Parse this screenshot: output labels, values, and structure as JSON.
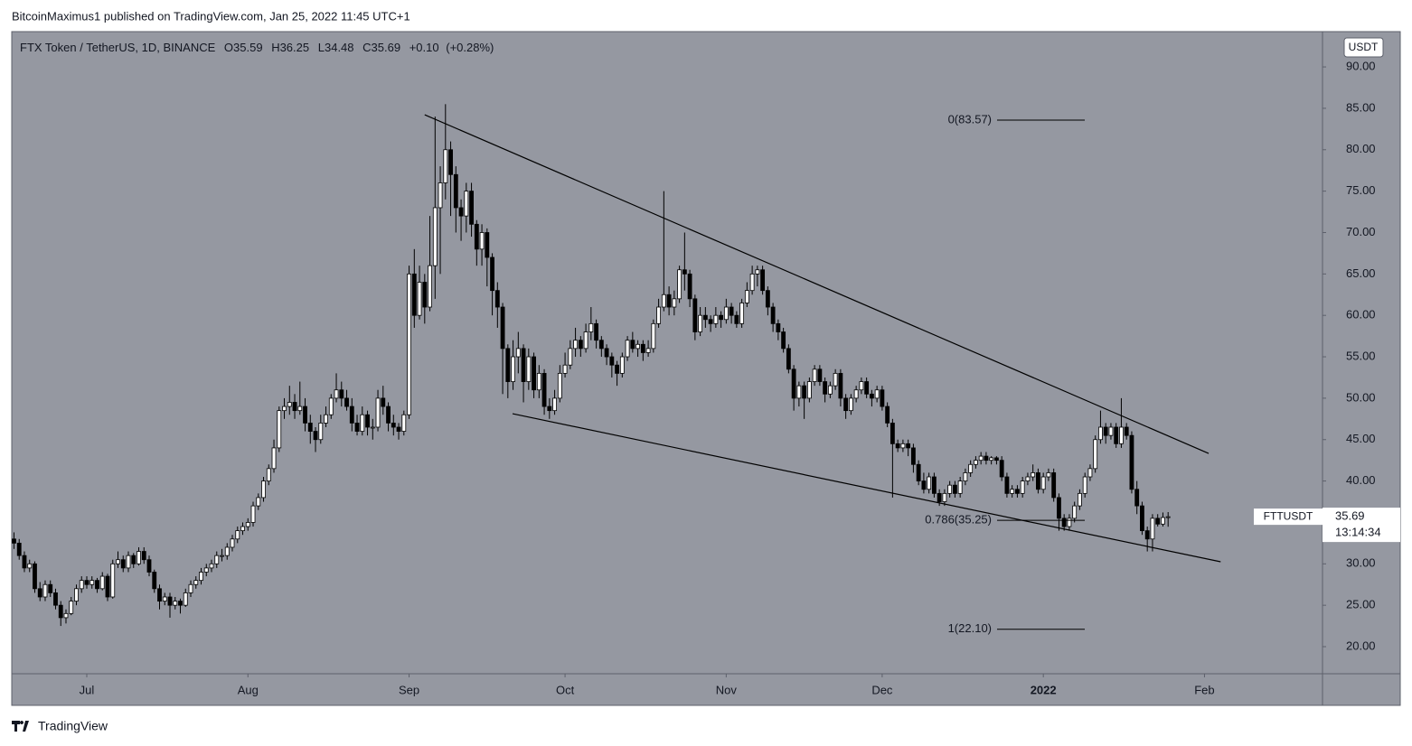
{
  "header": {
    "byline": "BitcoinMaximus1 published on TradingView.com, Jan 25, 2022 11:45 UTC+1"
  },
  "footer": {
    "brand": "TradingView"
  },
  "chart_data": {
    "type": "candlestick",
    "title": "FTX Token / TetherUS, 1D, BINANCE",
    "ohlc_letters": [
      "O",
      "H",
      "L",
      "C"
    ],
    "change": "+0.10",
    "change_pct": "(+0.28%)",
    "symbol": "FTTUSDT",
    "currency": "USDT",
    "countdown": "13:14:34",
    "xlim": [
      -0.43,
      251.7
    ],
    "xticks": [
      {
        "value": 14,
        "label": "Jul"
      },
      {
        "value": 45,
        "label": "Aug"
      },
      {
        "value": 76,
        "label": "Sep"
      },
      {
        "value": 106,
        "label": "Oct"
      },
      {
        "value": 137,
        "label": "Nov"
      },
      {
        "value": 167,
        "label": "Dec"
      },
      {
        "value": 198,
        "label": "2022"
      },
      {
        "value": 229,
        "label": "Feb"
      }
    ],
    "ylim": [
      16.73,
      94.26
    ],
    "yticks": [
      {
        "value": 20,
        "label": "20.00"
      },
      {
        "value": 25,
        "label": "25.00"
      },
      {
        "value": 30,
        "label": "30.00"
      },
      {
        "value": 35,
        "label": "35.00"
      },
      {
        "value": 40,
        "label": "40.00"
      },
      {
        "value": 45,
        "label": "45.00"
      },
      {
        "value": 50,
        "label": "50.00"
      },
      {
        "value": 55,
        "label": "55.00"
      },
      {
        "value": 60,
        "label": "60.00"
      },
      {
        "value": 65,
        "label": "65.00"
      },
      {
        "value": 70,
        "label": "70.00"
      },
      {
        "value": 75,
        "label": "75.00"
      },
      {
        "value": 80,
        "label": "80.00"
      },
      {
        "value": 85,
        "label": "85.00"
      },
      {
        "value": 90,
        "label": "90.00"
      }
    ],
    "up_color": "#ffffff",
    "down_color": "#000000",
    "trendlines": [
      {
        "x": [
          79.0,
          229.8
        ],
        "y": [
          84.22,
          43.33
        ]
      },
      {
        "x": [
          95.9,
          232.1
        ],
        "y": [
          48.13,
          30.25
        ]
      }
    ],
    "fib_levels": [
      {
        "value": 83.57,
        "label": "0(83.57)"
      },
      {
        "value": 35.25,
        "label": "0.786(35.25)"
      },
      {
        "value": 22.1,
        "label": "1(22.10)"
      }
    ],
    "ohlc": [
      [
        33,
        33.8,
        31.8,
        32.5
      ],
      [
        32.5,
        33,
        30.5,
        31
      ],
      [
        31,
        31.5,
        29,
        29.5
      ],
      [
        29.5,
        30.5,
        29,
        30
      ],
      [
        30,
        30.3,
        26.5,
        27
      ],
      [
        27,
        27.8,
        25.5,
        26
      ],
      [
        26,
        28,
        25.5,
        27.5
      ],
      [
        27.5,
        28,
        26,
        26.5
      ],
      [
        26.5,
        27,
        24.5,
        25
      ],
      [
        25,
        25.5,
        22.5,
        23.5
      ],
      [
        23.5,
        24.5,
        22.8,
        24
      ],
      [
        24,
        26,
        23.8,
        25.5
      ],
      [
        25.5,
        27.5,
        25,
        27
      ],
      [
        27,
        28.5,
        26.5,
        28
      ],
      [
        28,
        28.5,
        27,
        27.5
      ],
      [
        27.5,
        28.5,
        27,
        28
      ],
      [
        28,
        28.3,
        26.5,
        27
      ],
      [
        27,
        29,
        26.8,
        28.5
      ],
      [
        28.5,
        28.8,
        25.5,
        26
      ],
      [
        26,
        30.5,
        25.8,
        30
      ],
      [
        30,
        31.5,
        29.5,
        30.5
      ],
      [
        30.5,
        31,
        29,
        29.5
      ],
      [
        29.5,
        31.5,
        29,
        31
      ],
      [
        31,
        31.3,
        29.5,
        30
      ],
      [
        30,
        32,
        29.8,
        31.5
      ],
      [
        31.5,
        32,
        30,
        30.5
      ],
      [
        30.5,
        31,
        28.5,
        29
      ],
      [
        29,
        29.3,
        26.5,
        27
      ],
      [
        27,
        27.5,
        24.5,
        25.5
      ],
      [
        25.5,
        26.5,
        25,
        26
      ],
      [
        26,
        26.5,
        23.5,
        25
      ],
      [
        25,
        26,
        24.5,
        25.5
      ],
      [
        25.5,
        25.8,
        24,
        25
      ],
      [
        25,
        27,
        24.8,
        26.5
      ],
      [
        26.5,
        28,
        26,
        27.5
      ],
      [
        27.5,
        28.5,
        27,
        28
      ],
      [
        28,
        29.5,
        27.5,
        29
      ],
      [
        29,
        30,
        28.5,
        29.5
      ],
      [
        29.5,
        30.5,
        29,
        30
      ],
      [
        30,
        31.5,
        29.5,
        31
      ],
      [
        31,
        31.8,
        30.3,
        31
      ],
      [
        31,
        32.5,
        30.5,
        32
      ],
      [
        32,
        33.5,
        31.5,
        33
      ],
      [
        33,
        34.5,
        32.5,
        34
      ],
      [
        34,
        35,
        33.5,
        34.5
      ],
      [
        34.5,
        35.5,
        34,
        35
      ],
      [
        35,
        37.5,
        34.5,
        37
      ],
      [
        37,
        38.5,
        36.5,
        38
      ],
      [
        38,
        40.5,
        37.5,
        40
      ],
      [
        40,
        42,
        39.5,
        41.5
      ],
      [
        41.5,
        45,
        41,
        44
      ],
      [
        44,
        49,
        43.5,
        48.5
      ],
      [
        48.5,
        50,
        47.5,
        49
      ],
      [
        49,
        51.5,
        48,
        49.5
      ],
      [
        49.5,
        50.5,
        47.5,
        48.5
      ],
      [
        48.5,
        52,
        48,
        49
      ],
      [
        49,
        50,
        46,
        47
      ],
      [
        47,
        48,
        44.5,
        46
      ],
      [
        46,
        46.5,
        43.5,
        45
      ],
      [
        45,
        48,
        44.5,
        47
      ],
      [
        47,
        49,
        46.5,
        48
      ],
      [
        48,
        50.5,
        47.5,
        50
      ],
      [
        50,
        53,
        49.5,
        51
      ],
      [
        51,
        52,
        49,
        50
      ],
      [
        50,
        51,
        48.5,
        49
      ],
      [
        49,
        50,
        46,
        47
      ],
      [
        47,
        48,
        45.5,
        46
      ],
      [
        46,
        49,
        45.5,
        48
      ],
      [
        48,
        48.5,
        45.5,
        46.5
      ],
      [
        46.5,
        47.5,
        45,
        46.5
      ],
      [
        46.5,
        51,
        46,
        50
      ],
      [
        50,
        51.5,
        48,
        49
      ],
      [
        49,
        49.5,
        46,
        47
      ],
      [
        47,
        48,
        45.5,
        46.5
      ],
      [
        46.5,
        47,
        45,
        46
      ],
      [
        46,
        48.5,
        45.5,
        48
      ],
      [
        48,
        66,
        47.5,
        65
      ],
      [
        65,
        68,
        58.5,
        60
      ],
      [
        60,
        66,
        59.5,
        64
      ],
      [
        64,
        65,
        59,
        61
      ],
      [
        61,
        72,
        60.5,
        66
      ],
      [
        66,
        84,
        62,
        73
      ],
      [
        73,
        78,
        65,
        76
      ],
      [
        76,
        85.5,
        74,
        80
      ],
      [
        80,
        81,
        72,
        77
      ],
      [
        77,
        78,
        70,
        73
      ],
      [
        73,
        74,
        69,
        72
      ],
      [
        72,
        76,
        70,
        75
      ],
      [
        75,
        76,
        69.5,
        71
      ],
      [
        71,
        71.5,
        66,
        68
      ],
      [
        68,
        71,
        66,
        70
      ],
      [
        70,
        70.5,
        63.5,
        67
      ],
      [
        67,
        67.5,
        60,
        63
      ],
      [
        63,
        64,
        58.5,
        61
      ],
      [
        61,
        61.5,
        50.5,
        56
      ],
      [
        56,
        56.5,
        50,
        52
      ],
      [
        52,
        57,
        51,
        55
      ],
      [
        55,
        58,
        53,
        56
      ],
      [
        56,
        56.5,
        49.5,
        52
      ],
      [
        52,
        56,
        51,
        55
      ],
      [
        55,
        55.5,
        50,
        51
      ],
      [
        51,
        54,
        50,
        53
      ],
      [
        53,
        53.5,
        48,
        49
      ],
      [
        49,
        50,
        47.5,
        48.5
      ],
      [
        48.5,
        51,
        48,
        50
      ],
      [
        50,
        54,
        49.5,
        53
      ],
      [
        53,
        55.5,
        52.5,
        54
      ],
      [
        54,
        57,
        53.5,
        56
      ],
      [
        56,
        58.5,
        55,
        57
      ],
      [
        57,
        57.5,
        55,
        56
      ],
      [
        56,
        59,
        55.5,
        58
      ],
      [
        58,
        61,
        57,
        59
      ],
      [
        59,
        59.5,
        56,
        57
      ],
      [
        57,
        57.5,
        55,
        56
      ],
      [
        56,
        56.5,
        54,
        55
      ],
      [
        55,
        55.5,
        52.5,
        54
      ],
      [
        54,
        54.5,
        51.5,
        53
      ],
      [
        53,
        55.5,
        52.5,
        55
      ],
      [
        55,
        57.5,
        54.5,
        57
      ],
      [
        57,
        58,
        55.5,
        56
      ],
      [
        56,
        57,
        55,
        56.5
      ],
      [
        56.5,
        57,
        54.5,
        55.5
      ],
      [
        55.5,
        57,
        55,
        56
      ],
      [
        56,
        59.5,
        55.5,
        59
      ],
      [
        59,
        62,
        58.5,
        61
      ],
      [
        61,
        75,
        60.5,
        62.5
      ],
      [
        62.5,
        63.5,
        60,
        61
      ],
      [
        61,
        63,
        60,
        62
      ],
      [
        62,
        66,
        61.5,
        65.5
      ],
      [
        65.5,
        70,
        63,
        65
      ],
      [
        65,
        65.5,
        61,
        62
      ],
      [
        62,
        62.5,
        57,
        58
      ],
      [
        58,
        61,
        57.5,
        60
      ],
      [
        60,
        61,
        58.5,
        59.5
      ],
      [
        59.5,
        60,
        58,
        59
      ],
      [
        59,
        61,
        58.5,
        60
      ],
      [
        60,
        60.5,
        58.5,
        59.5
      ],
      [
        59.5,
        62,
        59,
        61
      ],
      [
        61,
        61.5,
        59,
        60
      ],
      [
        60,
        60.5,
        58.5,
        59
      ],
      [
        59,
        62,
        58.5,
        61.5
      ],
      [
        61.5,
        64,
        61,
        63
      ],
      [
        63,
        66,
        62.5,
        65
      ],
      [
        65,
        66,
        63.5,
        65.5
      ],
      [
        65.5,
        66,
        62.5,
        63
      ],
      [
        63,
        63.5,
        60,
        61
      ],
      [
        61,
        61.5,
        58,
        59
      ],
      [
        59,
        59.5,
        57,
        58
      ],
      [
        58,
        58.5,
        55.5,
        56
      ],
      [
        56,
        56.5,
        53,
        53.5
      ],
      [
        53.5,
        54,
        48.5,
        50
      ],
      [
        50,
        52,
        49,
        51.5
      ],
      [
        51.5,
        52,
        47.5,
        50
      ],
      [
        50,
        52.5,
        49.5,
        52
      ],
      [
        52,
        54,
        51.5,
        53.5
      ],
      [
        53.5,
        54,
        51.5,
        52
      ],
      [
        52,
        52.5,
        49.5,
        50.5
      ],
      [
        50.5,
        52,
        50,
        51.5
      ],
      [
        51.5,
        53.5,
        51,
        53
      ],
      [
        53,
        53.5,
        49,
        50
      ],
      [
        50,
        50.5,
        47.5,
        48.5
      ],
      [
        48.5,
        50.5,
        48,
        50
      ],
      [
        50,
        51.5,
        49.5,
        51
      ],
      [
        51,
        52.5,
        50.5,
        52
      ],
      [
        52,
        52.5,
        50,
        50.5
      ],
      [
        50.5,
        51,
        49,
        50
      ],
      [
        50,
        51.5,
        49.5,
        51
      ],
      [
        51,
        51.5,
        48.5,
        49
      ],
      [
        49,
        49.5,
        46.5,
        47
      ],
      [
        47,
        47.5,
        38,
        44.5
      ],
      [
        44.5,
        45,
        43.5,
        44
      ],
      [
        44,
        45,
        43.5,
        44.5
      ],
      [
        44.5,
        45,
        43,
        44
      ],
      [
        44,
        44.5,
        41,
        42
      ],
      [
        42,
        42.5,
        39.5,
        40
      ],
      [
        40,
        41,
        38.5,
        39
      ],
      [
        39,
        41,
        38.5,
        40.5
      ],
      [
        40.5,
        41,
        38,
        38.5
      ],
      [
        38.5,
        39,
        37,
        37.5
      ],
      [
        37.5,
        39,
        37,
        38.5
      ],
      [
        38.5,
        40,
        38,
        39.5
      ],
      [
        39.5,
        40,
        38,
        38.5
      ],
      [
        38.5,
        40.5,
        38,
        40
      ],
      [
        40,
        41.5,
        39.5,
        41
      ],
      [
        41,
        42.5,
        40.5,
        42
      ],
      [
        42,
        43,
        41.5,
        42.5
      ],
      [
        42.5,
        43.5,
        42,
        43
      ],
      [
        43,
        43.5,
        42,
        42.5
      ],
      [
        42.5,
        43,
        42,
        42.8
      ],
      [
        42.8,
        43,
        42,
        42.5
      ],
      [
        42.5,
        43,
        40,
        40.5
      ],
      [
        40.5,
        41,
        38,
        38.5
      ],
      [
        38.5,
        39.5,
        38,
        39
      ],
      [
        39,
        39.5,
        38,
        38.5
      ],
      [
        38.5,
        40.5,
        38,
        40
      ],
      [
        40,
        41,
        39.5,
        40.5
      ],
      [
        40.5,
        42,
        40,
        41
      ],
      [
        41,
        41.5,
        38.5,
        39
      ],
      [
        39,
        41,
        38.5,
        40.5
      ],
      [
        40.5,
        41.5,
        40,
        41
      ],
      [
        41,
        41.5,
        37.5,
        38
      ],
      [
        38,
        38.5,
        34,
        35.5
      ],
      [
        35.5,
        36,
        34,
        34.5
      ],
      [
        34.5,
        36,
        34,
        35.5
      ],
      [
        35.5,
        37.5,
        35,
        37
      ],
      [
        37,
        39,
        36.5,
        38.5
      ],
      [
        38.5,
        41,
        38,
        40.5
      ],
      [
        40.5,
        42,
        40,
        41.5
      ],
      [
        41.5,
        45.5,
        41,
        45
      ],
      [
        45,
        48.5,
        44.5,
        46.5
      ],
      [
        46.5,
        47,
        44.5,
        45.5
      ],
      [
        45.5,
        47,
        45,
        46.5
      ],
      [
        46.5,
        47,
        44,
        44.5
      ],
      [
        44.5,
        50,
        44,
        46.5
      ],
      [
        46.5,
        47,
        45,
        45.5
      ],
      [
        45.5,
        46,
        38.5,
        39
      ],
      [
        39,
        40,
        36,
        37
      ],
      [
        37,
        37.5,
        33.5,
        34
      ],
      [
        34,
        34.5,
        31.5,
        33
      ],
      [
        33,
        36,
        31.5,
        35.5
      ],
      [
        35.5,
        36,
        34.5,
        34.8
      ],
      [
        34.8,
        36.2,
        34.5,
        35.59
      ],
      [
        35.59,
        36.25,
        34.48,
        35.69
      ]
    ]
  }
}
